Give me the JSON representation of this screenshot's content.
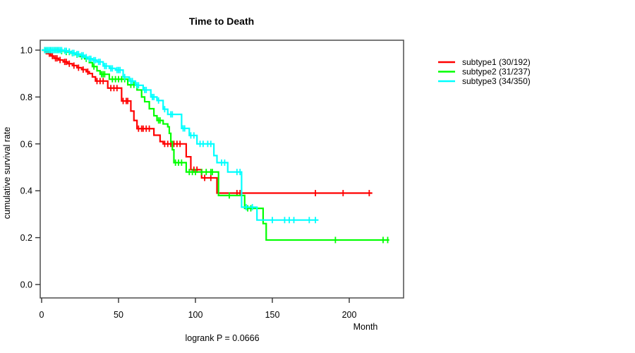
{
  "chart_data": {
    "type": "line",
    "subtype": "kaplan_meier_step",
    "title": "Time to Death",
    "xlabel": "Month",
    "ylabel": "cumulative survival rate",
    "annotation": "logrank P = 0.0666",
    "xlim": [
      0,
      235
    ],
    "ylim": [
      0,
      1.04
    ],
    "grid": false,
    "legend_position": "right-outside",
    "x_ticks": [
      {
        "v": 0,
        "label": "0"
      },
      {
        "v": 50,
        "label": "50"
      },
      {
        "v": 100,
        "label": "100"
      },
      {
        "v": 150,
        "label": "150"
      },
      {
        "v": 200,
        "label": "200"
      }
    ],
    "y_ticks": [
      {
        "v": 0.0,
        "label": "0.0"
      },
      {
        "v": 0.2,
        "label": "0.2"
      },
      {
        "v": 0.4,
        "label": "0.4"
      },
      {
        "v": 0.6,
        "label": "0.6"
      },
      {
        "v": 0.8,
        "label": "0.8"
      },
      {
        "v": 1.0,
        "label": "1.0"
      }
    ],
    "series": [
      {
        "name": "subtype1 (30/192)",
        "color": "#ff0000",
        "end": 215,
        "steps": [
          [
            0,
            1.0
          ],
          [
            2,
            0.995
          ],
          [
            4,
            0.985
          ],
          [
            6,
            0.975
          ],
          [
            8,
            0.965
          ],
          [
            11,
            0.958
          ],
          [
            14,
            0.95
          ],
          [
            17,
            0.942
          ],
          [
            20,
            0.934
          ],
          [
            23,
            0.925
          ],
          [
            26,
            0.917
          ],
          [
            29,
            0.908
          ],
          [
            31,
            0.9
          ],
          [
            33,
            0.886
          ],
          [
            35,
            0.868
          ],
          [
            43,
            0.838
          ],
          [
            52,
            0.783
          ],
          [
            58,
            0.74
          ],
          [
            60,
            0.7
          ],
          [
            62,
            0.665
          ],
          [
            73,
            0.637
          ],
          [
            77,
            0.61
          ],
          [
            79,
            0.6
          ],
          [
            94,
            0.545
          ],
          [
            97,
            0.49
          ],
          [
            104,
            0.455
          ],
          [
            114,
            0.39
          ]
        ],
        "censors": [
          3,
          5,
          7,
          9,
          10,
          12,
          15,
          16,
          18,
          21,
          24,
          27,
          30,
          36,
          38,
          40,
          45,
          47,
          49,
          53,
          55,
          56,
          63,
          65,
          66,
          68,
          70,
          80,
          82,
          84,
          86,
          88,
          90,
          99,
          101,
          106,
          110,
          127,
          129,
          178,
          196,
          213
        ]
      },
      {
        "name": "subtype2 (31/237)",
        "color": "#00ff00",
        "end": 226,
        "steps": [
          [
            0,
            1.0
          ],
          [
            11,
            0.996
          ],
          [
            15,
            0.992
          ],
          [
            19,
            0.987
          ],
          [
            22,
            0.981
          ],
          [
            25,
            0.973
          ],
          [
            28,
            0.963
          ],
          [
            31,
            0.947
          ],
          [
            33,
            0.93
          ],
          [
            36,
            0.912
          ],
          [
            38,
            0.897
          ],
          [
            44,
            0.876
          ],
          [
            56,
            0.852
          ],
          [
            62,
            0.83
          ],
          [
            65,
            0.8
          ],
          [
            67,
            0.78
          ],
          [
            70,
            0.75
          ],
          [
            73,
            0.72
          ],
          [
            75,
            0.7
          ],
          [
            79,
            0.685
          ],
          [
            82,
            0.673
          ],
          [
            83,
            0.645
          ],
          [
            84,
            0.61
          ],
          [
            85,
            0.575
          ],
          [
            86,
            0.52
          ],
          [
            94,
            0.48
          ],
          [
            115,
            0.38
          ],
          [
            132,
            0.325
          ],
          [
            144,
            0.26
          ],
          [
            146,
            0.19
          ]
        ],
        "censors": [
          2,
          4,
          6,
          8,
          10,
          13,
          16,
          18,
          20,
          23,
          26,
          29,
          34,
          39,
          40,
          41,
          46,
          48,
          50,
          52,
          54,
          58,
          60,
          76,
          77,
          87,
          89,
          91,
          96,
          98,
          100,
          104,
          107,
          110,
          111,
          122,
          134,
          136,
          191,
          222,
          225
        ]
      },
      {
        "name": "subtype3 (34/350)",
        "color": "#00ffff",
        "end": 180,
        "steps": [
          [
            0,
            1.0
          ],
          [
            14,
            0.997
          ],
          [
            17,
            0.994
          ],
          [
            19,
            0.988
          ],
          [
            22,
            0.983
          ],
          [
            25,
            0.978
          ],
          [
            28,
            0.97
          ],
          [
            30,
            0.963
          ],
          [
            33,
            0.957
          ],
          [
            36,
            0.95
          ],
          [
            40,
            0.932
          ],
          [
            44,
            0.922
          ],
          [
            48,
            0.915
          ],
          [
            53,
            0.885
          ],
          [
            57,
            0.868
          ],
          [
            61,
            0.85
          ],
          [
            66,
            0.83
          ],
          [
            71,
            0.8
          ],
          [
            75,
            0.785
          ],
          [
            79,
            0.748
          ],
          [
            82,
            0.726
          ],
          [
            91,
            0.666
          ],
          [
            96,
            0.636
          ],
          [
            101,
            0.6
          ],
          [
            112,
            0.55
          ],
          [
            114,
            0.52
          ],
          [
            121,
            0.48
          ],
          [
            130,
            0.33
          ],
          [
            140,
            0.275
          ]
        ],
        "censors": [
          2,
          3,
          4,
          5,
          6,
          7,
          8,
          9,
          10,
          11,
          12,
          13,
          15,
          16,
          18,
          20,
          21,
          23,
          24,
          26,
          27,
          29,
          31,
          32,
          34,
          35,
          37,
          38,
          41,
          42,
          45,
          46,
          49,
          50,
          51,
          54,
          58,
          59,
          62,
          63,
          67,
          68,
          72,
          73,
          76,
          80,
          84,
          85,
          92,
          93,
          97,
          99,
          103,
          105,
          108,
          110,
          117,
          119,
          127,
          129,
          133,
          137,
          150,
          158,
          161,
          164,
          174,
          178
        ]
      }
    ]
  },
  "style": {
    "box_color": "#4d4d4d",
    "tick_color": "#333333",
    "text_color": "#000000",
    "background": "#ffffff"
  }
}
